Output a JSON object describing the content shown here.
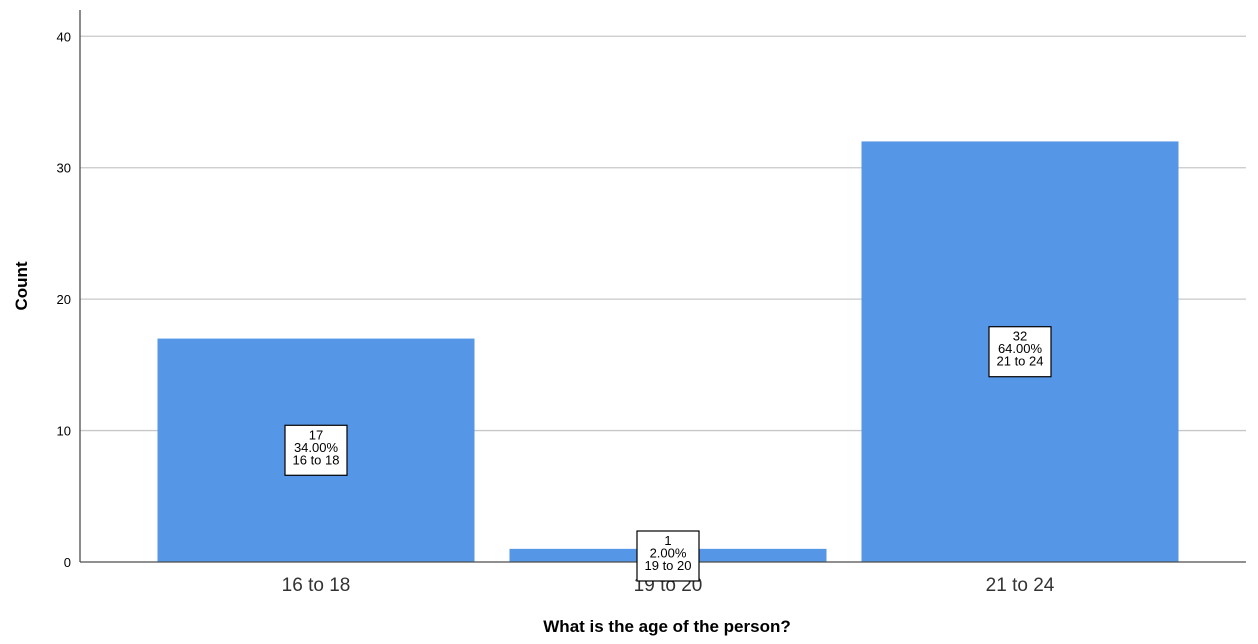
{
  "chart_data": {
    "type": "bar",
    "categories": [
      "16 to 18",
      "19 to 20",
      "21 to 24"
    ],
    "values": [
      17,
      1,
      32
    ],
    "data_labels": [
      [
        "17",
        "34.00%",
        "16 to 18"
      ],
      [
        "1",
        "2.00%",
        "19 to 20"
      ],
      [
        "32",
        "64.00%",
        "21 to 24"
      ]
    ],
    "xlabel": "What is the age of the person?",
    "ylabel": "Count",
    "ylim": [
      0,
      42
    ],
    "yticks": [
      0,
      10,
      20,
      30,
      40
    ],
    "grid": true,
    "legend": "none",
    "bar_color": "#5596e6",
    "grid_color": "#c8c8c8",
    "axis_color": "#4d4d4d"
  }
}
